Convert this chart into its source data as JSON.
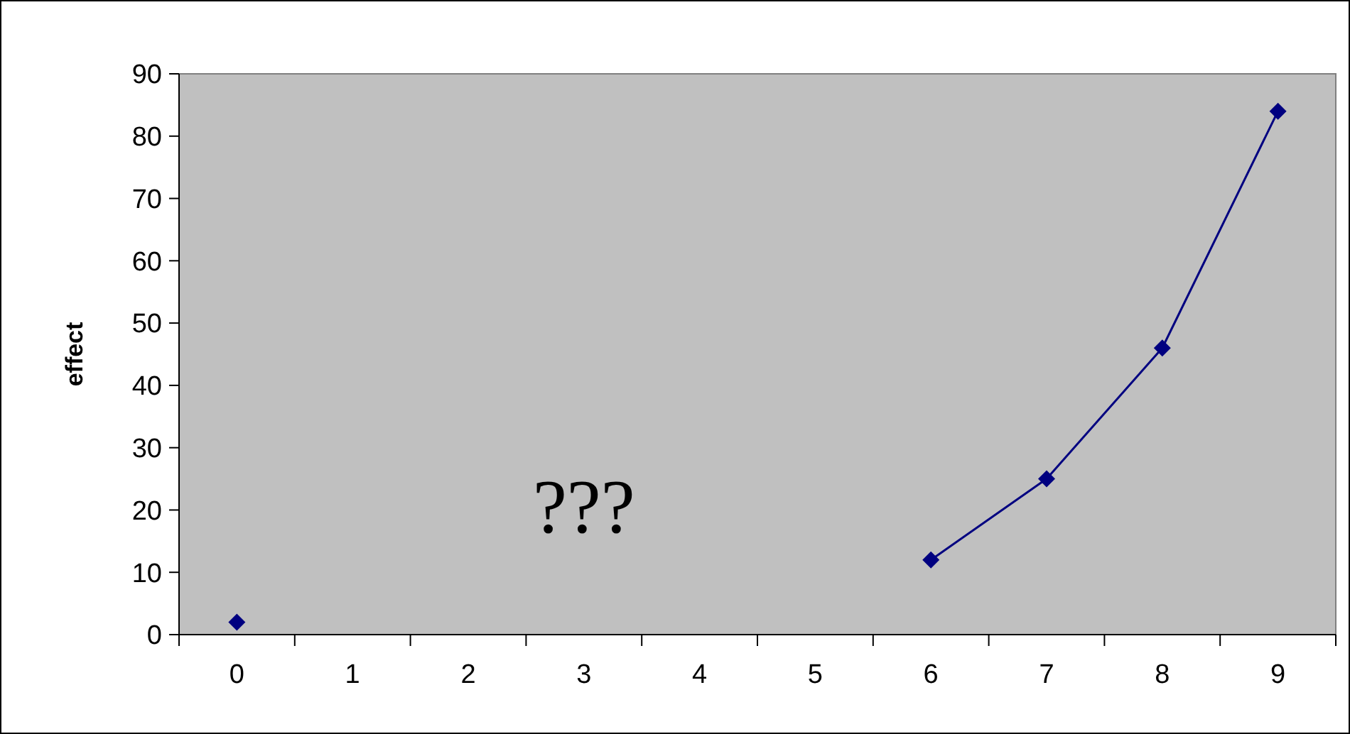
{
  "chart_data": {
    "type": "line",
    "ylabel": "effect",
    "categories": [
      "0",
      "1",
      "2",
      "3",
      "4",
      "5",
      "6",
      "7",
      "8",
      "9"
    ],
    "series": [
      {
        "color": "#000080",
        "values": [
          2,
          null,
          null,
          null,
          null,
          null,
          12,
          25,
          46,
          84
        ]
      }
    ],
    "ylim": [
      0,
      90
    ],
    "yticks": [
      0,
      10,
      20,
      30,
      40,
      50,
      60,
      70,
      80,
      90
    ],
    "annotations": [
      "???"
    ],
    "marker": "diamond",
    "line_style": "solid",
    "grid": false
  }
}
